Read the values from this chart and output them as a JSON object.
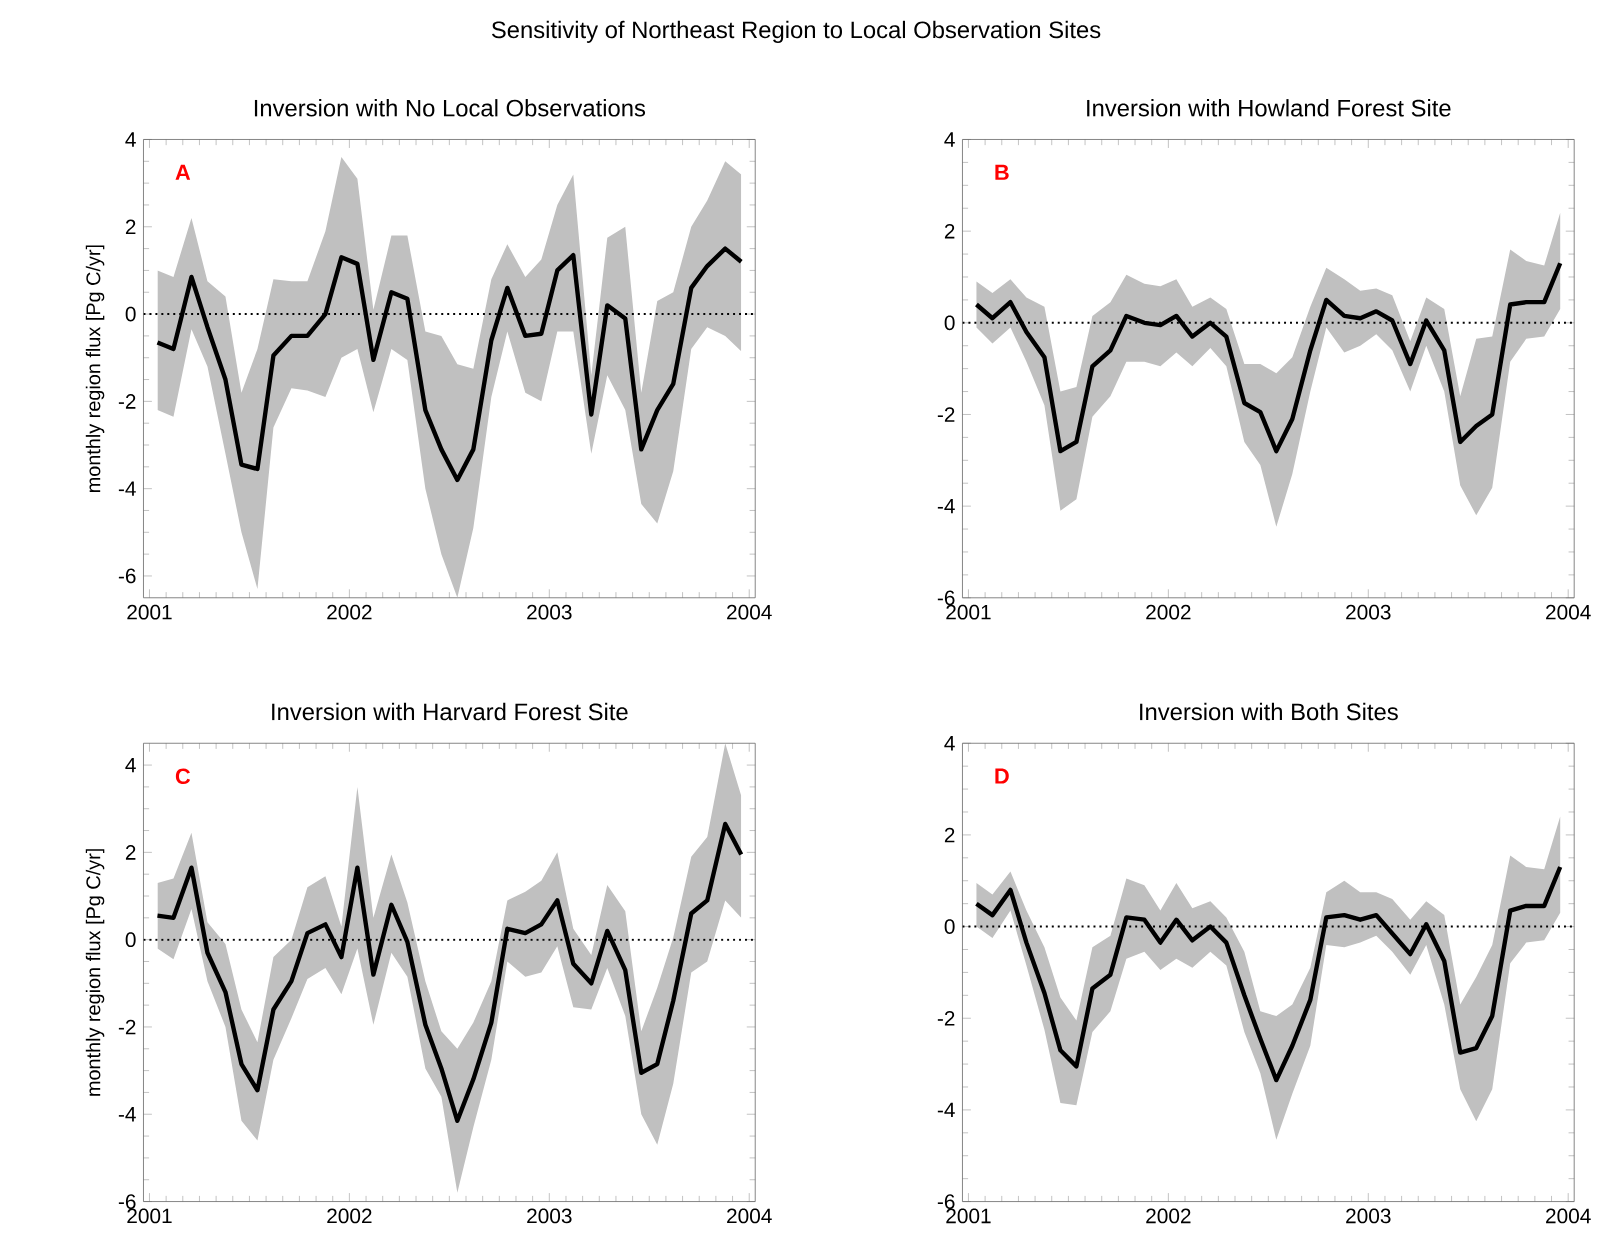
{
  "chart_data": [
    {
      "type": "line",
      "title": "Inversion with No Local Observations",
      "ylabel": "monthly region flux [Pg C/yr]",
      "annotations": [
        "Sensitivity of Northeast Region to Local Observation Sites",
        "A"
      ],
      "x": [
        2001.04,
        2001.12,
        2001.21,
        2001.29,
        2001.38,
        2001.46,
        2001.54,
        2001.62,
        2001.71,
        2001.79,
        2001.88,
        2001.96,
        2002.04,
        2002.12,
        2002.21,
        2002.29,
        2002.38,
        2002.46,
        2002.54,
        2002.62,
        2002.71,
        2002.79,
        2002.88,
        2002.96,
        2003.04,
        2003.12,
        2003.21,
        2003.29,
        2003.38,
        2003.46,
        2003.54,
        2003.62,
        2003.71,
        2003.79,
        2003.88,
        2003.96
      ],
      "series": [
        {
          "color": "#000000",
          "line_style": "solid",
          "values": [
            -0.65,
            -0.8,
            0.85,
            -0.3,
            -1.5,
            -3.45,
            -3.55,
            -0.95,
            -0.5,
            -0.5,
            0,
            1.3,
            1.15,
            -1.05,
            0.5,
            0.35,
            -2.2,
            -3.1,
            -3.8,
            -3.1,
            -0.6,
            0.6,
            -0.5,
            -0.45,
            1.0,
            1.35,
            -2.3,
            0.2,
            -0.1,
            -3.1,
            -2.2,
            -1.6,
            0.6,
            1.1,
            1.5,
            1.2
          ],
          "upper": [
            1.0,
            0.85,
            2.2,
            0.75,
            0.4,
            -1.8,
            -0.8,
            0.8,
            0.75,
            0.75,
            1.9,
            3.6,
            3.1,
            0.1,
            1.8,
            1.8,
            -0.4,
            -0.5,
            -1.15,
            -1.25,
            0.8,
            1.6,
            0.85,
            1.25,
            2.5,
            3.2,
            -1.4,
            1.75,
            2.0,
            -1.8,
            0.3,
            0.5,
            2.0,
            2.6,
            3.5,
            3.2
          ],
          "lower": [
            -2.2,
            -2.35,
            -0.35,
            -1.2,
            -3.2,
            -5.0,
            -6.3,
            -2.6,
            -1.7,
            -1.75,
            -1.9,
            -1.0,
            -0.8,
            -2.25,
            -0.8,
            -1.05,
            -4.0,
            -5.5,
            -6.5,
            -4.9,
            -1.9,
            -0.4,
            -1.8,
            -2.0,
            -0.4,
            -0.4,
            -3.2,
            -1.4,
            -2.2,
            -4.35,
            -4.8,
            -3.6,
            -0.8,
            -0.3,
            -0.5,
            -0.85
          ]
        }
      ],
      "xlim": [
        2000.97,
        2004.03
      ],
      "ylim": [
        -6.5,
        4
      ],
      "xticks": [
        2001,
        2002,
        2003,
        2004
      ],
      "yticks": [
        -6,
        -4,
        -2,
        0,
        2,
        4
      ],
      "grid": false,
      "ref_lines": [
        {
          "axis": "y",
          "value": 0,
          "color": "#000000",
          "line_style": "dotted"
        }
      ]
    },
    {
      "type": "line",
      "title": "Inversion with Howland Forest Site",
      "annotations": [
        "B"
      ],
      "x": [
        2001.04,
        2001.12,
        2001.21,
        2001.29,
        2001.38,
        2001.46,
        2001.54,
        2001.62,
        2001.71,
        2001.79,
        2001.88,
        2001.96,
        2002.04,
        2002.12,
        2002.21,
        2002.29,
        2002.38,
        2002.46,
        2002.54,
        2002.62,
        2002.71,
        2002.79,
        2002.88,
        2002.96,
        2003.04,
        2003.12,
        2003.21,
        2003.29,
        2003.38,
        2003.46,
        2003.54,
        2003.62,
        2003.71,
        2003.79,
        2003.88,
        2003.96
      ],
      "series": [
        {
          "color": "#000000",
          "line_style": "solid",
          "values": [
            0.4,
            0.1,
            0.45,
            -0.2,
            -0.75,
            -2.8,
            -2.6,
            -0.95,
            -0.6,
            0.15,
            0.0,
            -0.05,
            0.15,
            -0.3,
            0.0,
            -0.3,
            -1.75,
            -1.95,
            -2.8,
            -2.1,
            -0.6,
            0.5,
            0.15,
            0.1,
            0.25,
            0.05,
            -0.9,
            0.05,
            -0.6,
            -2.6,
            -2.25,
            -2.0,
            0.4,
            0.45,
            0.45,
            1.3
          ],
          "upper": [
            0.9,
            0.65,
            0.95,
            0.55,
            0.35,
            -1.5,
            -1.4,
            0.15,
            0.45,
            1.05,
            0.85,
            0.8,
            0.95,
            0.35,
            0.55,
            0.3,
            -0.9,
            -0.9,
            -1.1,
            -0.75,
            0.35,
            1.2,
            0.95,
            0.7,
            0.75,
            0.6,
            -0.4,
            0.55,
            0.3,
            -1.6,
            -0.35,
            -0.3,
            1.6,
            1.35,
            1.25,
            2.4
          ],
          "lower": [
            -0.1,
            -0.45,
            -0.1,
            -0.85,
            -1.8,
            -4.1,
            -3.85,
            -2.05,
            -1.6,
            -0.85,
            -0.85,
            -0.95,
            -0.65,
            -0.95,
            -0.55,
            -0.95,
            -2.6,
            -3.1,
            -4.45,
            -3.3,
            -1.5,
            -0.1,
            -0.65,
            -0.5,
            -0.25,
            -0.6,
            -1.5,
            -0.5,
            -1.5,
            -3.55,
            -4.2,
            -3.6,
            -0.85,
            -0.35,
            -0.3,
            0.3
          ]
        }
      ],
      "xlim": [
        2000.97,
        2004.03
      ],
      "ylim": [
        -6,
        4
      ],
      "xticks": [
        2001,
        2002,
        2003,
        2004
      ],
      "yticks": [
        -6,
        -4,
        -2,
        0,
        2,
        4
      ],
      "grid": false,
      "ref_lines": [
        {
          "axis": "y",
          "value": 0,
          "color": "#000000",
          "line_style": "dotted"
        }
      ]
    },
    {
      "type": "line",
      "title": "Inversion with Harvard Forest Site",
      "ylabel": "monthly region flux [Pg C/yr]",
      "annotations": [
        "C"
      ],
      "x": [
        2001.04,
        2001.12,
        2001.21,
        2001.29,
        2001.38,
        2001.46,
        2001.54,
        2001.62,
        2001.71,
        2001.79,
        2001.88,
        2001.96,
        2002.04,
        2002.12,
        2002.21,
        2002.29,
        2002.38,
        2002.46,
        2002.54,
        2002.62,
        2002.71,
        2002.79,
        2002.88,
        2002.96,
        2003.04,
        2003.12,
        2003.21,
        2003.29,
        2003.38,
        2003.46,
        2003.54,
        2003.62,
        2003.71,
        2003.79,
        2003.88,
        2003.96
      ],
      "series": [
        {
          "color": "#000000",
          "line_style": "solid",
          "values": [
            0.55,
            0.5,
            1.65,
            -0.3,
            -1.2,
            -2.85,
            -3.45,
            -1.6,
            -0.95,
            0.15,
            0.35,
            -0.4,
            1.65,
            -0.8,
            0.8,
            -0.05,
            -1.95,
            -2.95,
            -4.15,
            -3.2,
            -1.9,
            0.25,
            0.15,
            0.35,
            0.9,
            -0.55,
            -1.0,
            0.2,
            -0.7,
            -3.05,
            -2.85,
            -1.4,
            0.6,
            0.9,
            2.65,
            1.95
          ],
          "upper": [
            1.3,
            1.4,
            2.45,
            0.4,
            -0.1,
            -1.6,
            -2.35,
            -0.4,
            0.0,
            1.2,
            1.45,
            0.3,
            3.5,
            0.5,
            1.95,
            0.85,
            -0.95,
            -2.1,
            -2.5,
            -1.9,
            -0.95,
            0.9,
            1.1,
            1.35,
            2.0,
            0.25,
            -0.35,
            1.25,
            0.65,
            -2.1,
            -1.1,
            0.05,
            1.9,
            2.35,
            4.5,
            3.3
          ],
          "lower": [
            -0.2,
            -0.45,
            0.7,
            -0.95,
            -2.0,
            -4.15,
            -4.6,
            -2.75,
            -1.8,
            -0.9,
            -0.65,
            -1.25,
            -0.2,
            -1.95,
            -0.3,
            -0.85,
            -2.95,
            -3.6,
            -5.8,
            -4.3,
            -2.75,
            -0.5,
            -0.85,
            -0.75,
            -0.15,
            -1.55,
            -1.6,
            -0.65,
            -1.75,
            -4.0,
            -4.7,
            -3.3,
            -0.75,
            -0.5,
            0.9,
            0.5
          ]
        }
      ],
      "xlim": [
        2000.97,
        2004.03
      ],
      "ylim": [
        -6,
        4.5
      ],
      "xticks": [
        2001,
        2002,
        2003,
        2004
      ],
      "yticks": [
        -6,
        -4,
        -2,
        0,
        2,
        4
      ],
      "grid": false,
      "ref_lines": [
        {
          "axis": "y",
          "value": 0,
          "color": "#000000",
          "line_style": "dotted"
        }
      ]
    },
    {
      "type": "line",
      "title": "Inversion with Both Sites",
      "annotations": [
        "D"
      ],
      "x": [
        2001.04,
        2001.12,
        2001.21,
        2001.29,
        2001.38,
        2001.46,
        2001.54,
        2001.62,
        2001.71,
        2001.79,
        2001.88,
        2001.96,
        2002.04,
        2002.12,
        2002.21,
        2002.29,
        2002.38,
        2002.46,
        2002.54,
        2002.62,
        2002.71,
        2002.79,
        2002.88,
        2002.96,
        2003.04,
        2003.12,
        2003.21,
        2003.29,
        2003.38,
        2003.46,
        2003.54,
        2003.62,
        2003.71,
        2003.79,
        2003.88,
        2003.96
      ],
      "series": [
        {
          "color": "#000000",
          "line_style": "solid",
          "values": [
            0.5,
            0.25,
            0.8,
            -0.35,
            -1.45,
            -2.7,
            -3.05,
            -1.35,
            -1.05,
            0.2,
            0.15,
            -0.35,
            0.15,
            -0.3,
            0.0,
            -0.35,
            -1.5,
            -2.45,
            -3.35,
            -2.6,
            -1.6,
            0.2,
            0.25,
            0.15,
            0.25,
            -0.15,
            -0.6,
            0.05,
            -0.75,
            -2.75,
            -2.65,
            -1.95,
            0.35,
            0.45,
            0.45,
            1.3
          ],
          "upper": [
            0.95,
            0.7,
            1.2,
            0.35,
            -0.45,
            -1.55,
            -2.05,
            -0.45,
            -0.2,
            1.05,
            0.9,
            0.35,
            0.95,
            0.4,
            0.55,
            0.2,
            -0.55,
            -1.85,
            -1.95,
            -1.7,
            -0.9,
            0.75,
            1.0,
            0.75,
            0.75,
            0.6,
            0.15,
            0.55,
            0.25,
            -1.7,
            -1.1,
            -0.4,
            1.55,
            1.3,
            1.25,
            2.4
          ],
          "lower": [
            0.0,
            -0.25,
            0.35,
            -0.85,
            -2.25,
            -3.85,
            -3.9,
            -2.3,
            -1.85,
            -0.7,
            -0.55,
            -0.95,
            -0.7,
            -0.9,
            -0.55,
            -0.85,
            -2.3,
            -3.2,
            -4.65,
            -3.65,
            -2.6,
            -0.4,
            -0.45,
            -0.35,
            -0.2,
            -0.55,
            -1.05,
            -0.4,
            -1.7,
            -3.55,
            -4.25,
            -3.55,
            -0.8,
            -0.35,
            -0.3,
            0.3
          ]
        }
      ],
      "xlim": [
        2000.97,
        2004.03
      ],
      "ylim": [
        -6,
        4
      ],
      "xticks": [
        2001,
        2002,
        2003,
        2004
      ],
      "yticks": [
        -6,
        -4,
        -2,
        0,
        2,
        4
      ],
      "grid": false,
      "ref_lines": [
        {
          "axis": "y",
          "value": 0,
          "color": "#000000",
          "line_style": "dotted"
        }
      ]
    }
  ]
}
